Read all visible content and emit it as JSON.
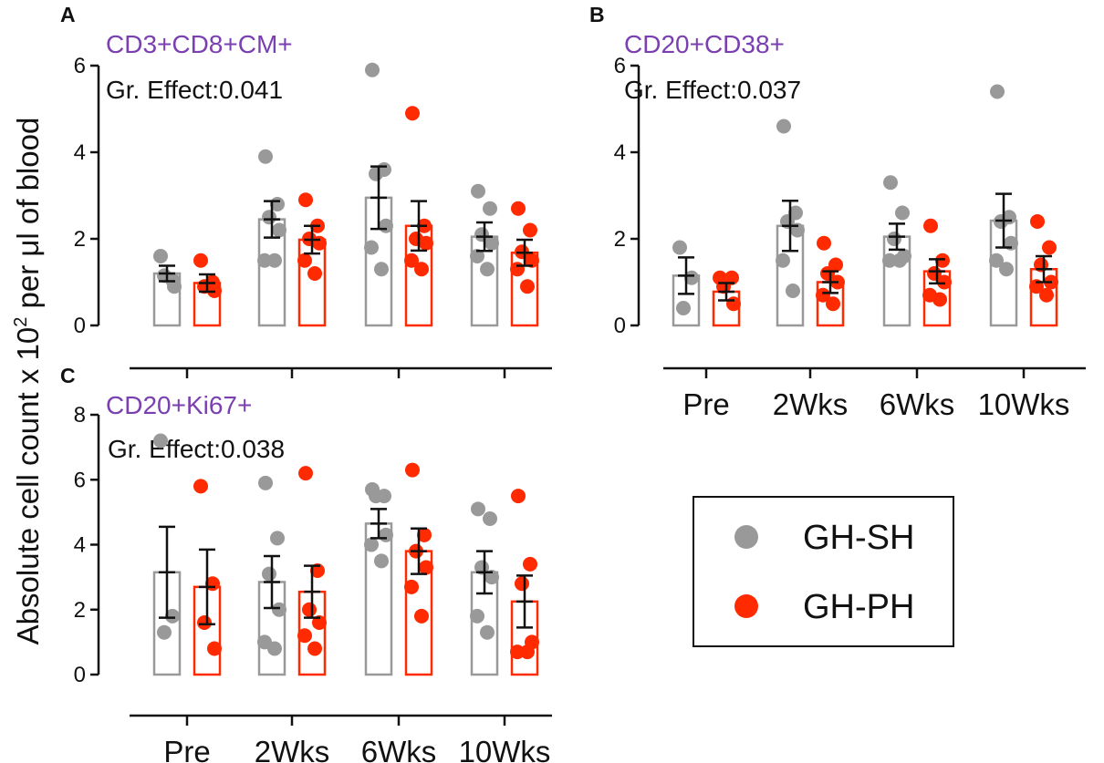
{
  "figure": {
    "ylabel_main": "Absolute cell count x 10",
    "ylabel_sup": "2",
    "ylabel_tail": " per μl of blood"
  },
  "colors": {
    "sh": "#999999",
    "ph": "#ff2a00",
    "title": "#7a3fb0",
    "axis": "#111111"
  },
  "legend": {
    "items": [
      "GH-SH",
      "GH-PH"
    ]
  },
  "chart_data": [
    {
      "panel": "A",
      "type": "bar",
      "title": "CD3+CD8+CM+",
      "annotation": "Gr. Effect:0.041",
      "categories": [
        "Pre",
        "2Wks",
        "6Wks",
        "10Wks"
      ],
      "show_xticklabels": false,
      "ylim": [
        0,
        6
      ],
      "yticks": [
        "0",
        "2",
        "4",
        "6"
      ],
      "series": [
        {
          "name": "GH-SH",
          "means": [
            1.2,
            2.45,
            2.95,
            2.05
          ],
          "sem": [
            0.18,
            0.42,
            0.72,
            0.33
          ],
          "points": [
            [
              1.6,
              1.05,
              1.15,
              0.9
            ],
            [
              3.9,
              2.8,
              2.5,
              2.2,
              1.5,
              1.5
            ],
            [
              5.9,
              3.6,
              3.5,
              2.3,
              1.8,
              1.3
            ],
            [
              3.1,
              2.7,
              2.1,
              1.9,
              1.6,
              1.3
            ]
          ]
        },
        {
          "name": "GH-PH",
          "means": [
            0.98,
            1.98,
            2.3,
            1.68
          ],
          "sem": [
            0.2,
            0.32,
            0.57,
            0.3
          ],
          "points": [
            [
              1.5,
              1.0,
              0.9,
              0.8
            ],
            [
              2.9,
              2.3,
              2.0,
              1.9,
              1.5,
              1.2
            ],
            [
              4.9,
              2.3,
              2.0,
              1.9,
              1.5,
              1.3
            ],
            [
              2.7,
              2.2,
              1.7,
              1.5,
              1.3,
              0.9
            ]
          ]
        }
      ]
    },
    {
      "panel": "B",
      "type": "bar",
      "title": "CD20+CD38+",
      "annotation": "Gr. Effect:0.037",
      "categories": [
        "Pre",
        "2Wks",
        "6Wks",
        "10Wks"
      ],
      "show_xticklabels": true,
      "ylim": [
        0,
        6
      ],
      "yticks": [
        "0",
        "2",
        "4",
        "6"
      ],
      "series": [
        {
          "name": "GH-SH",
          "means": [
            1.15,
            2.3,
            2.05,
            2.42
          ],
          "sem": [
            0.42,
            0.58,
            0.3,
            0.62
          ],
          "points": [
            [
              1.8,
              1.1,
              0.4
            ],
            [
              4.6,
              2.6,
              2.4,
              2.2,
              1.5,
              0.8
            ],
            [
              3.3,
              2.6,
              2.0,
              1.6,
              1.5,
              1.5
            ],
            [
              5.4,
              2.5,
              2.4,
              1.9,
              1.5,
              1.3
            ]
          ]
        },
        {
          "name": "GH-PH",
          "means": [
            0.78,
            1.0,
            1.25,
            1.3
          ],
          "sem": [
            0.2,
            0.25,
            0.28,
            0.3
          ],
          "points": [
            [
              1.1,
              1.1,
              0.9,
              0.5
            ],
            [
              1.9,
              1.4,
              1.2,
              1.0,
              0.7,
              0.5
            ],
            [
              2.3,
              1.5,
              1.2,
              1.0,
              0.7,
              0.6
            ],
            [
              2.4,
              1.8,
              1.4,
              1.0,
              0.9,
              0.7
            ]
          ]
        }
      ]
    },
    {
      "panel": "C",
      "type": "bar",
      "title": "CD20+Ki67+",
      "annotation": "Gr. Effect:0.038",
      "categories": [
        "Pre",
        "2Wks",
        "6Wks",
        "10Wks"
      ],
      "show_xticklabels": true,
      "ylim": [
        0,
        8
      ],
      "yticks": [
        "0",
        "2",
        "4",
        "6",
        "8"
      ],
      "series": [
        {
          "name": "GH-SH",
          "means": [
            3.15,
            2.85,
            4.65,
            3.15
          ],
          "sem": [
            1.4,
            0.8,
            0.45,
            0.65
          ],
          "points": [
            [
              7.2,
              1.8,
              1.3
            ],
            [
              5.9,
              4.2,
              3.1,
              2.0,
              1.0,
              0.8
            ],
            [
              5.7,
              5.5,
              5.5,
              4.3,
              4.0,
              3.5
            ],
            [
              5.1,
              4.8,
              3.3,
              3.0,
              1.8,
              1.3
            ]
          ]
        },
        {
          "name": "GH-PH",
          "means": [
            2.7,
            2.55,
            3.8,
            2.25
          ],
          "sem": [
            1.15,
            0.8,
            0.7,
            0.8
          ],
          "points": [
            [
              5.8,
              2.8,
              1.6,
              0.8
            ],
            [
              6.2,
              3.2,
              2.0,
              1.6,
              1.2,
              0.8
            ],
            [
              6.3,
              4.3,
              3.8,
              3.3,
              2.7,
              1.8
            ],
            [
              5.5,
              3.4,
              2.8,
              1.0,
              0.7,
              0.7
            ]
          ]
        }
      ]
    }
  ]
}
